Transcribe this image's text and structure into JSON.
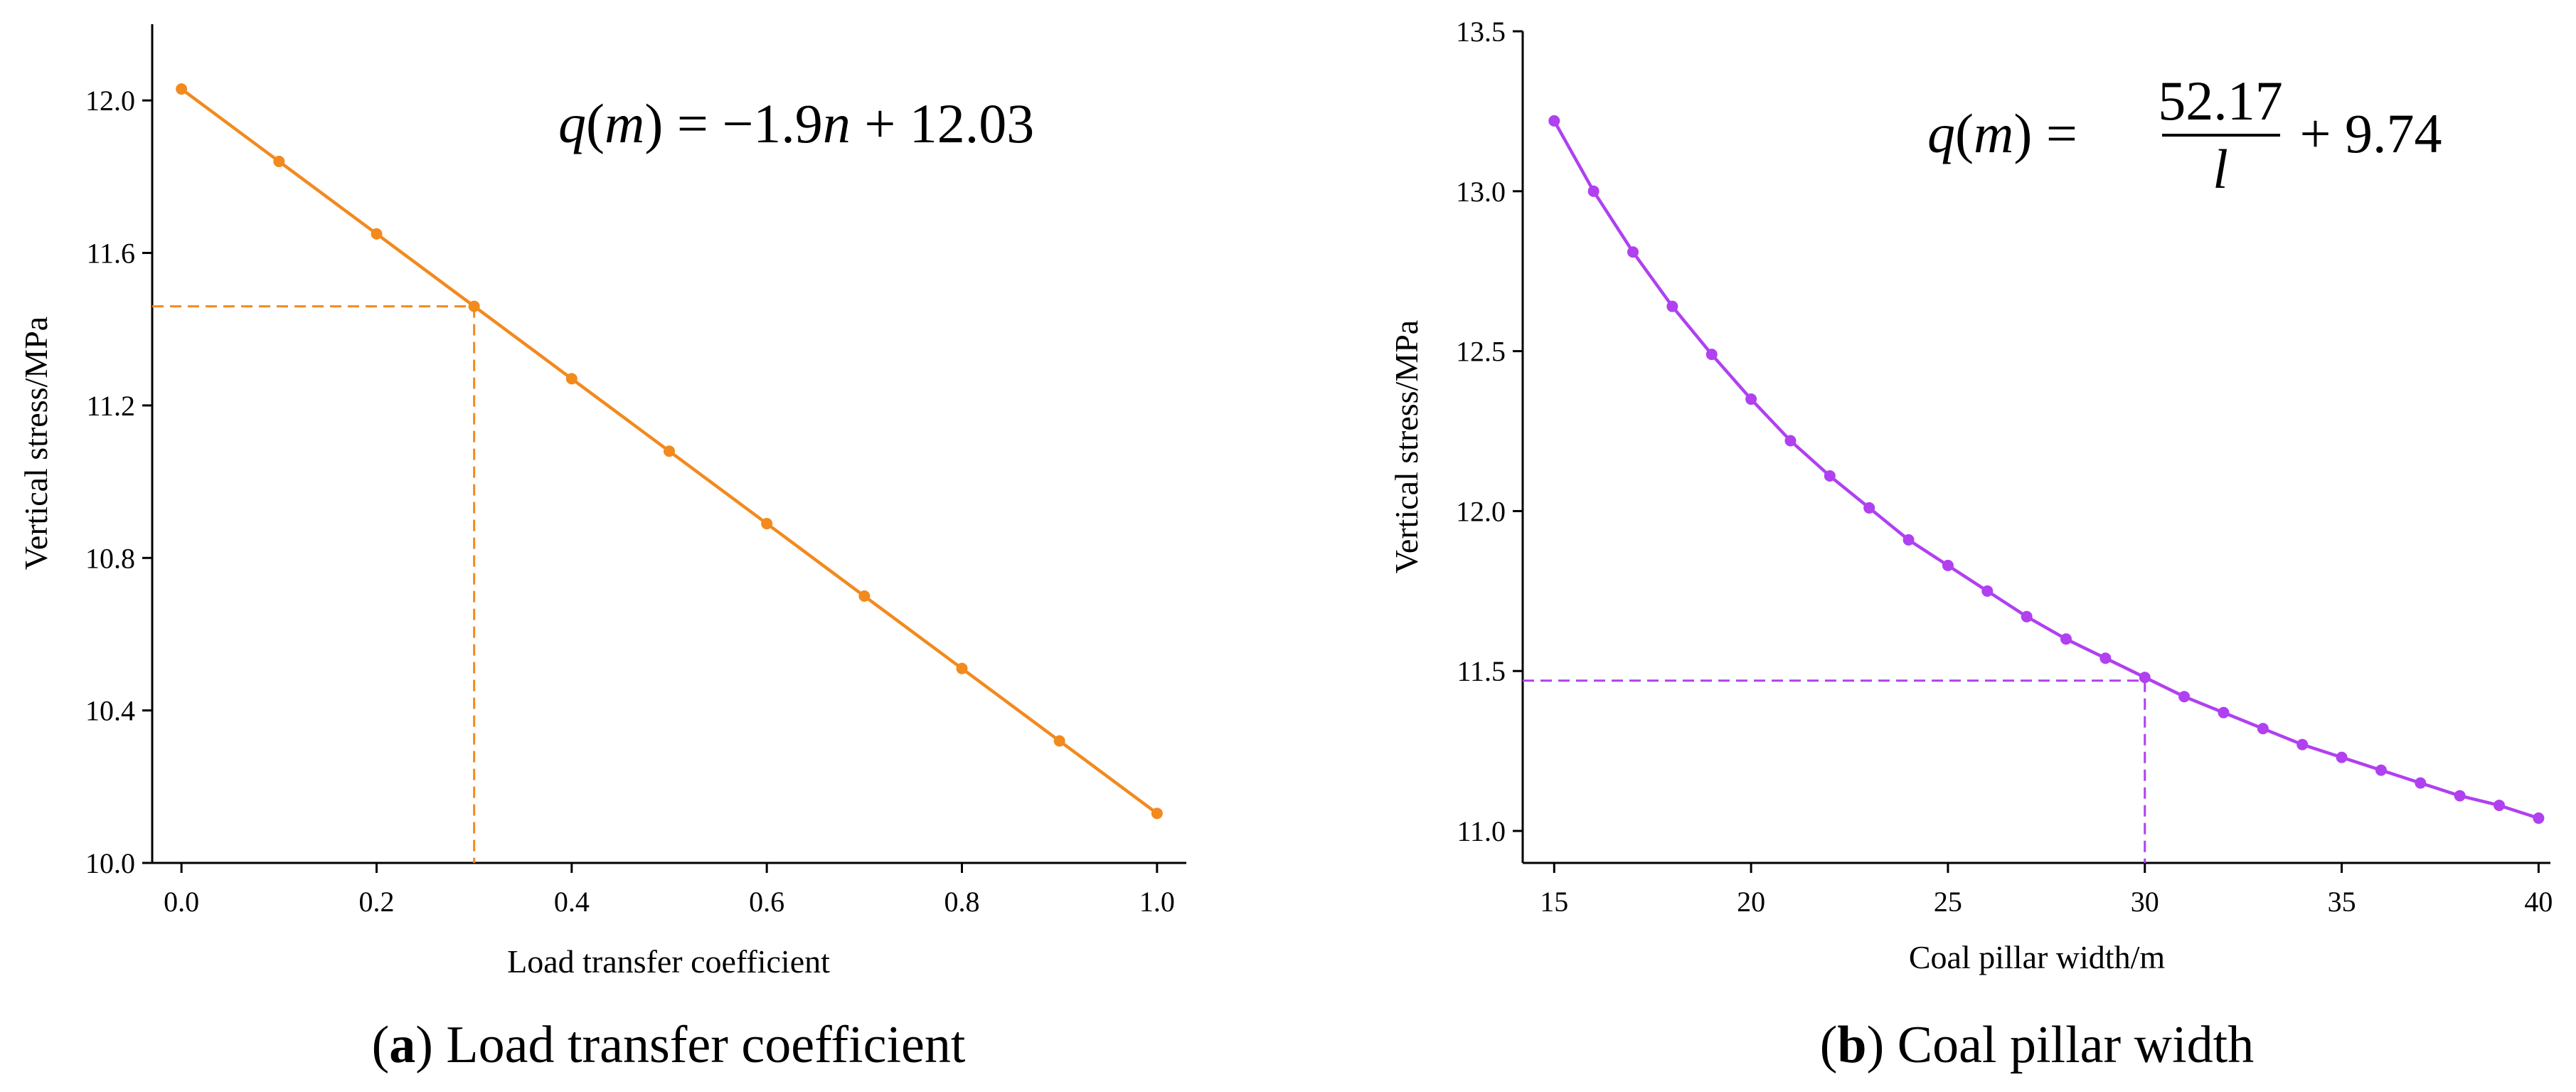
{
  "colors": {
    "series_a": "#F28A1E",
    "series_b": "#B040F0",
    "text": "#000000"
  },
  "chart_data": [
    {
      "id": "a",
      "type": "line",
      "caption_label": "a",
      "caption_open": "(",
      "caption_close": ")",
      "caption_text": " Load transfer coefficient",
      "xlabel": "Load transfer coefficient",
      "ylabel": "Vertical stress/MPa",
      "xlim": [
        -0.03,
        1.03
      ],
      "ylim": [
        10.0,
        12.2
      ],
      "xticks": [
        0.0,
        0.2,
        0.4,
        0.6,
        0.8,
        1.0
      ],
      "xtick_labels": [
        "0.0",
        "0.2",
        "0.4",
        "0.6",
        "0.8",
        "1.0"
      ],
      "yticks": [
        10.0,
        10.4,
        10.8,
        11.2,
        11.6,
        12.0
      ],
      "ytick_labels": [
        "10.0",
        "10.4",
        "10.8",
        "11.2",
        "11.6",
        "12.0"
      ],
      "x": [
        0.0,
        0.1,
        0.2,
        0.3,
        0.4,
        0.5,
        0.6,
        0.7,
        0.8,
        0.9,
        1.0
      ],
      "y": [
        12.03,
        11.84,
        11.65,
        11.46,
        11.27,
        11.08,
        10.89,
        10.7,
        10.51,
        10.32,
        10.13
      ],
      "reference_point": {
        "x": 0.3,
        "y": 11.46
      },
      "equation": {
        "lhs_fn": "q",
        "lhs_open": "(",
        "lhs_var": "m",
        "lhs_close": ")",
        "equals": " = ",
        "coef": "−1.9",
        "var": "n",
        "tail": " + 12.03"
      }
    },
    {
      "id": "b",
      "type": "line",
      "caption_label": "b",
      "caption_open": "(",
      "caption_close": ")",
      "caption_text": " Coal pillar width",
      "xlabel": "Coal pillar width/m",
      "ylabel": "Vertical stress/MPa",
      "xlim": [
        14.2,
        40.3
      ],
      "ylim": [
        10.9,
        13.5
      ],
      "xticks": [
        15,
        20,
        25,
        30,
        35,
        40
      ],
      "xtick_labels": [
        "15",
        "20",
        "25",
        "30",
        "35",
        "40"
      ],
      "yticks": [
        11.0,
        11.5,
        12.0,
        12.5,
        13.0,
        13.5
      ],
      "ytick_labels": [
        "11.0",
        "11.5",
        "12.0",
        "12.5",
        "13.0",
        "13.5"
      ],
      "x": [
        15,
        16,
        17,
        18,
        19,
        20,
        21,
        22,
        23,
        24,
        25,
        26,
        27,
        28,
        29,
        30,
        31,
        32,
        33,
        34,
        35,
        36,
        37,
        38,
        39,
        40
      ],
      "y": [
        13.22,
        13.0,
        12.81,
        12.64,
        12.49,
        12.35,
        12.22,
        12.11,
        12.01,
        11.91,
        11.83,
        11.75,
        11.67,
        11.6,
        11.54,
        11.48,
        11.42,
        11.37,
        11.32,
        11.27,
        11.23,
        11.19,
        11.15,
        11.11,
        11.08,
        11.04
      ],
      "reference_point": {
        "x": 30,
        "y": 11.47
      },
      "equation": {
        "lhs_fn": "q",
        "lhs_open": "(",
        "lhs_var": "m",
        "lhs_close": ")",
        "equals": " = ",
        "numerator": "52.17",
        "denominator": "l",
        "tail": " + 9.74"
      }
    }
  ]
}
